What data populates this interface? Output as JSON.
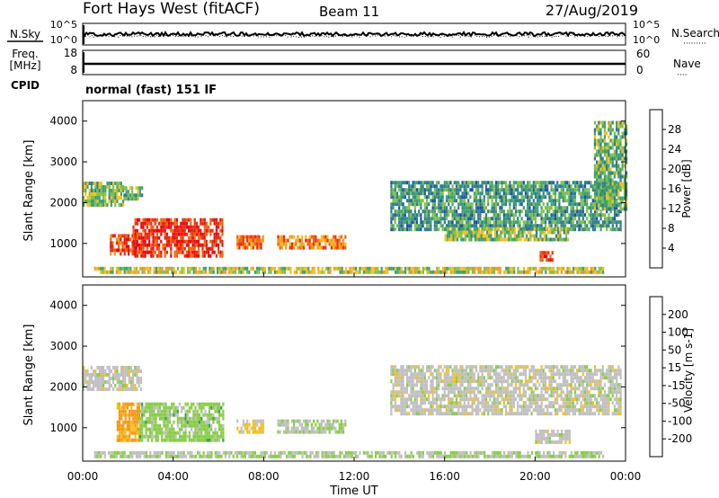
{
  "header": {
    "station": "Fort Hays West (fitACF)",
    "beam": "Beam 11",
    "date": "27/Aug/2019"
  },
  "noise_panel": {
    "left_label": "N.Sky",
    "right_label": "N.Search",
    "right_legend": "·········",
    "left_ticks": [
      "10^5",
      "10^0"
    ],
    "right_ticks": [
      "10^5",
      "10^0"
    ]
  },
  "freq_panel": {
    "left_label_1": "Freq.",
    "left_label_2": "[MHz]",
    "left_ticks": [
      "18",
      "8"
    ],
    "right_label": "Nave",
    "right_legend": "····",
    "right_ticks": [
      "60",
      "0"
    ]
  },
  "cpid": {
    "label": "CPID",
    "value": "normal (fast) 151 IF"
  },
  "axes": {
    "ylabel": "Slant Range [km]",
    "xlabel": "Time UT",
    "y_ticks": [
      "4000",
      "3000",
      "2000",
      "1000"
    ],
    "x_ticks": [
      "00:00",
      "04:00",
      "08:00",
      "12:00",
      "16:00",
      "20:00",
      "00:00"
    ]
  },
  "colorbars": {
    "power": {
      "label": "Power [dB]",
      "ticks": [
        "28",
        "24",
        "20",
        "16",
        "12",
        "8",
        "4"
      ],
      "colors": [
        "#0a22e6",
        "#1f4fb0",
        "#2f7c8c",
        "#3fa070",
        "#7fc04a",
        "#f0c020",
        "#f39a18",
        "#f06410",
        "#e82e12",
        "#e60c0c"
      ]
    },
    "velocity": {
      "label": "Velocity [m s-1]",
      "ticks": [
        "200",
        "100",
        "50",
        "15",
        "-15",
        "-50",
        "-100",
        "-200"
      ],
      "colors": [
        "#2035c8",
        "#2a6aa8",
        "#2f8a6a",
        "#3fa048",
        "#8acc4a",
        "#c0c0c0",
        "#f2c020",
        "#f39a18",
        "#f06a12",
        "#ea3a12",
        "#e60c0c"
      ]
    }
  },
  "chart_data": {
    "type": "heatmap",
    "x_range_hours": [
      0,
      24
    ],
    "y_range_km": [
      180,
      4500
    ],
    "power_features": [
      {
        "t0": 0.0,
        "t1": 1.8,
        "r0": 1900,
        "r1": 2450,
        "value_db": 13
      },
      {
        "t0": 1.8,
        "t1": 2.6,
        "r0": 2050,
        "r1": 2400,
        "value_db": 12
      },
      {
        "t0": 1.2,
        "t1": 2.4,
        "r0": 700,
        "r1": 1150,
        "value_db": 25
      },
      {
        "t0": 2.2,
        "t1": 6.2,
        "r0": 650,
        "r1": 1550,
        "value_db": 26
      },
      {
        "t0": 6.8,
        "t1": 8.0,
        "r0": 850,
        "r1": 1200,
        "value_db": 22
      },
      {
        "t0": 8.6,
        "t1": 11.6,
        "r0": 850,
        "r1": 1200,
        "value_db": 21
      },
      {
        "t0": 0.5,
        "t1": 23.0,
        "r0": 250,
        "r1": 400,
        "value_db": 15
      },
      {
        "t0": 13.6,
        "t1": 23.8,
        "r0": 1300,
        "r1": 2500,
        "value_db": 10
      },
      {
        "t0": 16.0,
        "t1": 21.5,
        "r0": 1050,
        "r1": 1350,
        "value_db": 13
      },
      {
        "t0": 20.2,
        "t1": 20.8,
        "r0": 550,
        "r1": 800,
        "value_db": 26
      },
      {
        "t0": 22.6,
        "t1": 24.0,
        "r0": 1800,
        "r1": 4000,
        "value_db": 12
      }
    ],
    "velocity_features": [
      {
        "t0": 0.0,
        "t1": 2.6,
        "r0": 1900,
        "r1": 2450,
        "value_ms": 0
      },
      {
        "t0": 1.5,
        "t1": 2.5,
        "r0": 650,
        "r1": 1550,
        "value_ms": -80
      },
      {
        "t0": 2.5,
        "t1": 6.2,
        "r0": 650,
        "r1": 1550,
        "value_ms": 40
      },
      {
        "t0": 6.8,
        "t1": 8.0,
        "r0": 850,
        "r1": 1200,
        "value_ms": -30
      },
      {
        "t0": 8.6,
        "t1": 11.6,
        "r0": 850,
        "r1": 1200,
        "value_ms": 20
      },
      {
        "t0": 0.5,
        "t1": 23.0,
        "r0": 250,
        "r1": 400,
        "value_ms": 20
      },
      {
        "t0": 13.6,
        "t1": 23.8,
        "r0": 1300,
        "r1": 2500,
        "value_ms": 0
      },
      {
        "t0": 20.0,
        "t1": 21.5,
        "r0": 600,
        "r1": 900,
        "value_ms": 0
      }
    ]
  }
}
